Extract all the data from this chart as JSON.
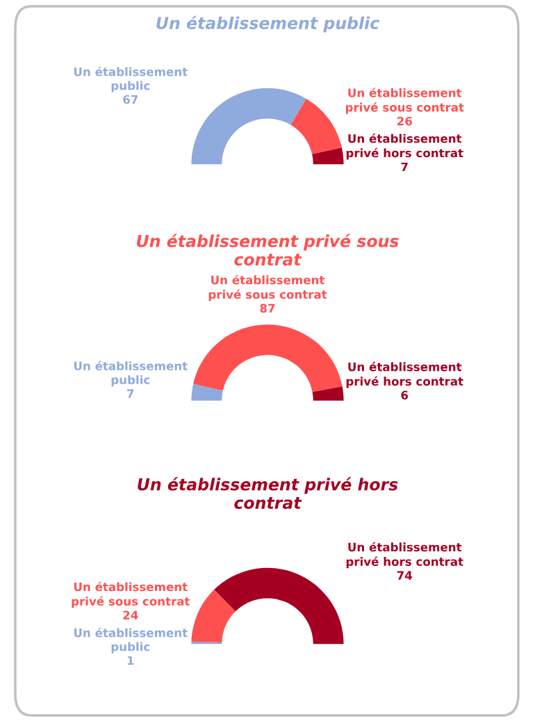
{
  "chart_data": [
    {
      "type": "donut",
      "title": "Un établissement public",
      "categories": [
        "Un établissement public",
        "Un établissement privé sous contrat",
        "Un établissement privé hors contrat"
      ],
      "values": [
        67,
        26,
        7
      ],
      "colors": [
        "#8faadc",
        "#ff5050",
        "#a50021"
      ],
      "data_labels": true
    },
    {
      "type": "donut",
      "title": "Un établissement privé sous contrat",
      "categories": [
        "Un établissement public",
        "Un établissement privé sous contrat",
        "Un établissement privé hors contrat"
      ],
      "values": [
        7,
        87,
        6
      ],
      "colors": [
        "#8faadc",
        "#ff5050",
        "#a50021"
      ],
      "data_labels": true
    },
    {
      "type": "donut",
      "title": "Un établissement privé hors contrat",
      "categories": [
        "Un établissement public",
        "Un établissement privé sous contrat",
        "Un établissement privé hors contrat"
      ],
      "values": [
        1,
        24,
        74
      ],
      "colors": [
        "#8faadc",
        "#ff5050",
        "#a50021"
      ],
      "data_labels": true
    }
  ]
}
